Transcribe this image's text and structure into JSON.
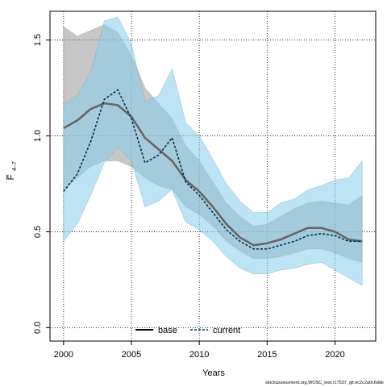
{
  "chart_data": {
    "type": "line",
    "title": "",
    "xlabel": "Years",
    "ylabel": "F̅ 4–7",
    "ylabel_main": "F̅",
    "ylabel_sub": "4–7",
    "xlim": [
      1999,
      2023
    ],
    "ylim": [
      -0.07,
      1.65
    ],
    "xticks": [
      2000,
      2005,
      2010,
      2015,
      2020
    ],
    "yticks": [
      0.0,
      0.5,
      1.0,
      1.5
    ],
    "ytick_labels": [
      "0.0",
      "0.5",
      "1.0",
      "1.5"
    ],
    "grid": "dotted",
    "legend": "bottom-center",
    "x": [
      2000,
      2001,
      2002,
      2003,
      2004,
      2005,
      2006,
      2007,
      2008,
      2009,
      2010,
      2011,
      2012,
      2013,
      2014,
      2015,
      2016,
      2017,
      2018,
      2019,
      2020,
      2021,
      2022
    ],
    "series": [
      {
        "name": "base",
        "color": "#666666",
        "band_color": "#999999",
        "values": [
          1.04,
          1.08,
          1.14,
          1.17,
          1.16,
          1.1,
          0.99,
          0.93,
          0.87,
          0.77,
          0.71,
          0.63,
          0.54,
          0.47,
          0.43,
          0.44,
          0.46,
          0.49,
          0.52,
          0.52,
          0.5,
          0.46,
          0.45
        ],
        "lower": [
          0.72,
          0.78,
          0.84,
          0.87,
          0.87,
          0.84,
          0.78,
          0.74,
          0.72,
          0.63,
          0.59,
          0.53,
          0.45,
          0.4,
          0.36,
          0.36,
          0.37,
          0.39,
          0.41,
          0.41,
          0.39,
          0.36,
          0.34
        ],
        "upper": [
          1.57,
          1.52,
          1.55,
          1.58,
          1.54,
          1.42,
          1.25,
          1.17,
          1.09,
          0.95,
          0.87,
          0.76,
          0.65,
          0.58,
          0.53,
          0.54,
          0.58,
          0.62,
          0.65,
          0.66,
          0.65,
          0.64,
          0.69
        ]
      },
      {
        "name": "current",
        "color": "#003355",
        "band_color": "#87CEEB",
        "values": [
          0.71,
          0.8,
          0.97,
          1.19,
          1.24,
          1.09,
          0.86,
          0.9,
          0.99,
          0.76,
          0.69,
          0.6,
          0.51,
          0.45,
          0.41,
          0.41,
          0.43,
          0.45,
          0.48,
          0.49,
          0.48,
          0.45,
          0.45
        ],
        "lower": [
          0.45,
          0.54,
          0.69,
          0.86,
          0.94,
          0.87,
          0.63,
          0.66,
          0.72,
          0.55,
          0.51,
          0.45,
          0.37,
          0.31,
          0.28,
          0.28,
          0.3,
          0.31,
          0.33,
          0.34,
          0.3,
          0.26,
          0.22
        ],
        "upper": [
          1.16,
          1.21,
          1.33,
          1.6,
          1.62,
          1.48,
          1.18,
          1.21,
          1.35,
          1.07,
          1.0,
          0.88,
          0.75,
          0.66,
          0.6,
          0.6,
          0.65,
          0.67,
          0.72,
          0.74,
          0.77,
          0.78,
          0.87
        ]
      }
    ]
  },
  "footer": {
    "watermark": "stockassessment.org,WOSC_test,r17537, git:ec2c2a0c6dde"
  }
}
